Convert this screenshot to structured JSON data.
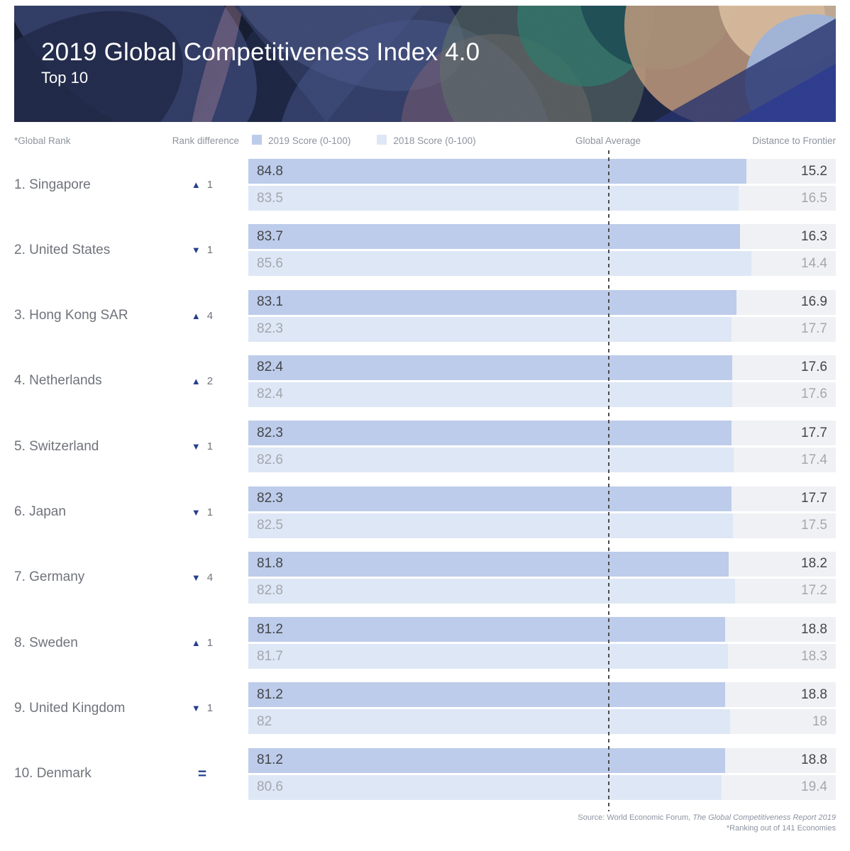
{
  "header": {
    "title": "2019 Global Competitiveness Index 4.0",
    "subtitle": "Top 10"
  },
  "columns": {
    "global_rank": "*Global Rank",
    "rank_difference": "Rank difference",
    "legend_2019": "2019 Score (0-100)",
    "legend_2018": "2018 Score (0-100)",
    "global_average": "Global Average",
    "distance_to_frontier": "Distance to Frontier"
  },
  "glyphs": {
    "up": "▲",
    "down": "▼",
    "equal": "="
  },
  "colors": {
    "score_2019_fill": "#bdccea",
    "score_2018_fill": "#dee7f5",
    "track": "#f0f1f4",
    "accent_navy": "#24408e",
    "text_dark": "#434549",
    "text_gray": "#a3a7af",
    "header_gray": "#8e939d"
  },
  "chart_data": {
    "type": "bar",
    "orientation": "horizontal",
    "title": "2019 Global Competitiveness Index 4.0 — Top 10",
    "xlim": [
      0,
      100
    ],
    "global_average_x": 61.2,
    "legend": [
      "2019 Score (0-100)",
      "2018 Score (0-100)"
    ],
    "categories": [
      "Singapore",
      "United States",
      "Hong Kong SAR",
      "Netherlands",
      "Switzerland",
      "Japan",
      "Germany",
      "Sweden",
      "United Kingdom",
      "Denmark"
    ],
    "series": [
      {
        "name": "2019 Score (0-100)",
        "values": [
          84.8,
          83.7,
          83.1,
          82.4,
          82.3,
          82.3,
          81.8,
          81.2,
          81.2,
          81.2
        ]
      },
      {
        "name": "2018 Score (0-100)",
        "values": [
          83.5,
          85.6,
          82.3,
          82.4,
          82.6,
          82.5,
          82.8,
          81.7,
          82,
          80.6
        ]
      }
    ],
    "distance_to_frontier_2019": [
      15.2,
      16.3,
      16.9,
      17.6,
      17.7,
      17.7,
      18.2,
      18.8,
      18.8,
      18.8
    ],
    "distance_to_frontier_2018": [
      16.5,
      14.4,
      17.7,
      17.6,
      17.4,
      17.5,
      17.2,
      18.3,
      18,
      19.4
    ],
    "rows": [
      {
        "label": "1. Singapore",
        "rank_change_dir": "up",
        "rank_change": "1",
        "score_2019": 84.8,
        "score_2019_label": "84.8",
        "dtf_2019": "15.2",
        "score_2018": 83.5,
        "score_2018_label": "83.5",
        "dtf_2018": "16.5"
      },
      {
        "label": "2. United States",
        "rank_change_dir": "down",
        "rank_change": "1",
        "score_2019": 83.7,
        "score_2019_label": "83.7",
        "dtf_2019": "16.3",
        "score_2018": 85.6,
        "score_2018_label": "85.6",
        "dtf_2018": "14.4"
      },
      {
        "label": "3. Hong Kong SAR",
        "rank_change_dir": "up",
        "rank_change": "4",
        "score_2019": 83.1,
        "score_2019_label": "83.1",
        "dtf_2019": "16.9",
        "score_2018": 82.3,
        "score_2018_label": "82.3",
        "dtf_2018": "17.7"
      },
      {
        "label": "4. Netherlands",
        "rank_change_dir": "up",
        "rank_change": "2",
        "score_2019": 82.4,
        "score_2019_label": "82.4",
        "dtf_2019": "17.6",
        "score_2018": 82.4,
        "score_2018_label": "82.4",
        "dtf_2018": "17.6"
      },
      {
        "label": "5. Switzerland",
        "rank_change_dir": "down",
        "rank_change": "1",
        "score_2019": 82.3,
        "score_2019_label": "82.3",
        "dtf_2019": "17.7",
        "score_2018": 82.6,
        "score_2018_label": "82.6",
        "dtf_2018": "17.4"
      },
      {
        "label": "6. Japan",
        "rank_change_dir": "down",
        "rank_change": "1",
        "score_2019": 82.3,
        "score_2019_label": "82.3",
        "dtf_2019": "17.7",
        "score_2018": 82.5,
        "score_2018_label": "82.5",
        "dtf_2018": "17.5"
      },
      {
        "label": "7. Germany",
        "rank_change_dir": "down",
        "rank_change": "4",
        "score_2019": 81.8,
        "score_2019_label": "81.8",
        "dtf_2019": "18.2",
        "score_2018": 82.8,
        "score_2018_label": "82.8",
        "dtf_2018": "17.2"
      },
      {
        "label": "8. Sweden",
        "rank_change_dir": "up",
        "rank_change": "1",
        "score_2019": 81.2,
        "score_2019_label": "81.2",
        "dtf_2019": "18.8",
        "score_2018": 81.7,
        "score_2018_label": "81.7",
        "dtf_2018": "18.3"
      },
      {
        "label": "9. United Kingdom",
        "rank_change_dir": "down",
        "rank_change": "1",
        "score_2019": 81.2,
        "score_2019_label": "81.2",
        "dtf_2019": "18.8",
        "score_2018": 82,
        "score_2018_label": "82",
        "dtf_2018": "18"
      },
      {
        "label": "10. Denmark",
        "rank_change_dir": "equal",
        "rank_change": "",
        "score_2019": 81.2,
        "score_2019_label": "81.2",
        "dtf_2019": "18.8",
        "score_2018": 80.6,
        "score_2018_label": "80.6",
        "dtf_2018": "19.4"
      }
    ]
  },
  "footer": {
    "source_prefix": "Source:  World Economic Forum, ",
    "source_italic": "The Global Competitiveness Report 2019",
    "note": "*Ranking out of 141 Economies"
  }
}
